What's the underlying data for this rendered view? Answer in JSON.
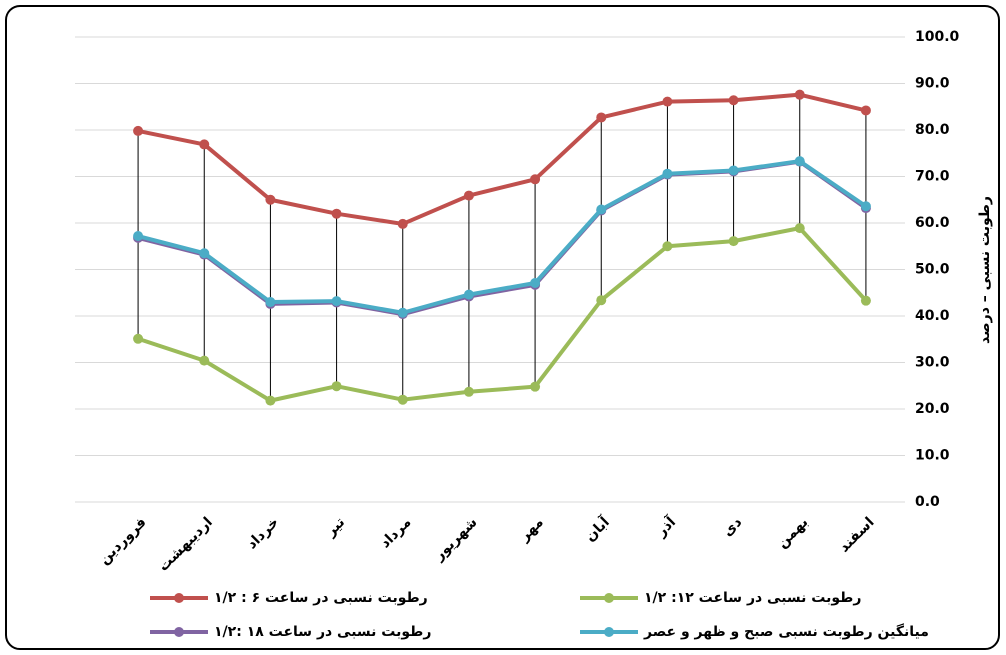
{
  "chart_data": {
    "type": "line",
    "y_label": "رطوبت نسبی – درصد",
    "categories": [
      "فروردین",
      "اردیبهشت",
      "خرداد",
      "تیر",
      "مرداد",
      "شهریور",
      "مهر",
      "آبان",
      "آذر",
      "دی",
      "بهمن",
      "اسفند"
    ],
    "series": [
      {
        "name": "رطوبت نسبی در ساعت ۶ : ۱/۲",
        "color": "#c0504d",
        "values": [
          79.8,
          76.9,
          65,
          62,
          59.8,
          65.9,
          69.4,
          82.7,
          86.1,
          86.4,
          87.6,
          84.2
        ]
      },
      {
        "name": "رطوبت نسبی در ساعت ۱۲: ۱/۲",
        "color": "#9bbb59",
        "values": [
          35.1,
          30.4,
          21.8,
          24.9,
          22,
          23.7,
          24.8,
          43.4,
          55,
          56.1,
          58.9,
          43.3
        ]
      },
      {
        "name": "رطوبت نسبی در ساعت ۱۸ :۱/۲",
        "color": "#8064a2",
        "values": [
          56.8,
          53.2,
          42.6,
          42.9,
          40.4,
          44.2,
          46.7,
          62.7,
          70.4,
          71.1,
          73.2,
          63.2
        ]
      },
      {
        "name": "میانگین رطوبت نسبی صبح و ظهر و عصر",
        "color": "#4bacc6",
        "values": [
          57.2,
          53.5,
          43,
          43.2,
          40.7,
          44.6,
          47.1,
          62.9,
          70.6,
          71.3,
          73.3,
          63.6
        ]
      }
    ],
    "ylim": [
      0,
      100
    ],
    "yticks": [
      {
        "value": 0,
        "label": "0.0"
      },
      {
        "value": 10,
        "label": "10.0"
      },
      {
        "value": 20,
        "label": "20.0"
      },
      {
        "value": 30,
        "label": "30.0"
      },
      {
        "value": 40,
        "label": "40.0"
      },
      {
        "value": 50,
        "label": "50.0"
      },
      {
        "value": 60,
        "label": "60.0"
      },
      {
        "value": 70,
        "label": "70.0"
      },
      {
        "value": 80,
        "label": "80.0"
      },
      {
        "value": 90,
        "label": "90.0"
      },
      {
        "value": 100,
        "label": "100.0"
      }
    ],
    "grid": true,
    "hi_lo_lines": true
  }
}
